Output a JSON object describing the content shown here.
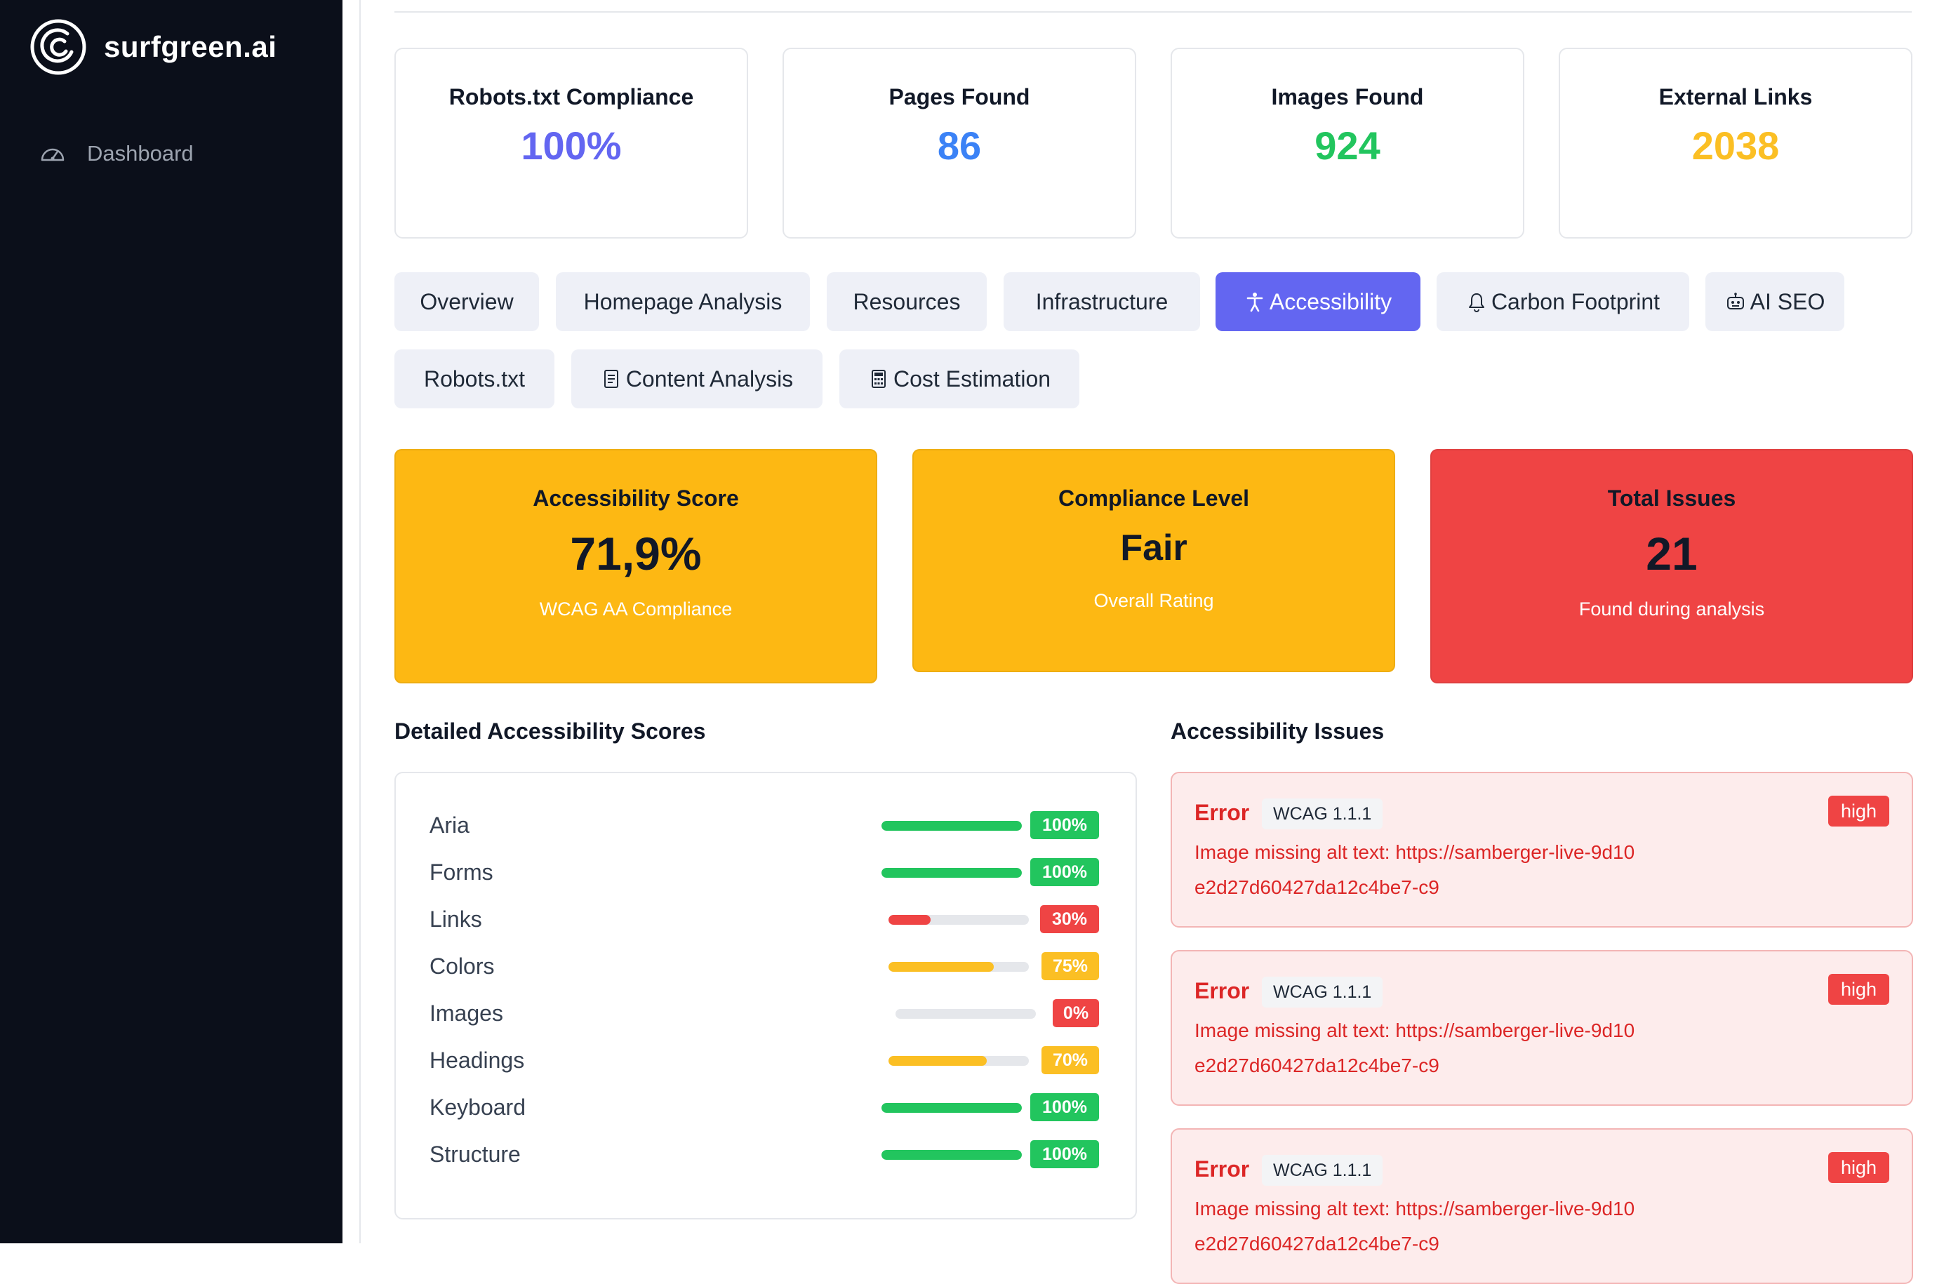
{
  "app": {
    "brand": "surfgreen.ai"
  },
  "sidebar": {
    "items": [
      {
        "label": "Dashboard",
        "icon": "gauge-icon"
      }
    ]
  },
  "stats": [
    {
      "title": "Robots.txt Compliance",
      "value": "100%",
      "color": "#6366f1"
    },
    {
      "title": "Pages Found",
      "value": "86",
      "color": "#3b82f6"
    },
    {
      "title": "Images Found",
      "value": "924",
      "color": "#22c55e"
    },
    {
      "title": "External Links",
      "value": "2038",
      "color": "#fbbf24"
    }
  ],
  "tabs": [
    {
      "label": "Overview"
    },
    {
      "label": "Homepage Analysis"
    },
    {
      "label": "Resources"
    },
    {
      "label": "Infrastructure"
    },
    {
      "label": "Accessibility",
      "icon": "accessibility-icon",
      "active": true
    },
    {
      "label": "Carbon Footprint",
      "icon": "bell-icon"
    },
    {
      "label": "AI SEO",
      "icon": "robot-icon"
    },
    {
      "label": "Robots.txt"
    },
    {
      "label": "Content Analysis",
      "icon": "document-icon"
    },
    {
      "label": "Cost Estimation",
      "icon": "calculator-icon"
    }
  ],
  "summary": [
    {
      "title": "Accessibility Score",
      "value": "71,9%",
      "sub": "WCAG AA Compliance",
      "color": "#fdb813"
    },
    {
      "title": "Compliance Level",
      "value": "Fair",
      "sub": "Overall Rating",
      "color": "#fdb813"
    },
    {
      "title": "Total Issues",
      "value": "21",
      "sub": "Found during analysis",
      "color": "#ef4444"
    }
  ],
  "detailed": {
    "title": "Detailed Accessibility Scores",
    "rows": [
      {
        "name": "Aria",
        "percent": 100,
        "label": "100%",
        "color": "#22c55e"
      },
      {
        "name": "Forms",
        "percent": 100,
        "label": "100%",
        "color": "#22c55e"
      },
      {
        "name": "Links",
        "percent": 30,
        "label": "30%",
        "color": "#ef4444"
      },
      {
        "name": "Colors",
        "percent": 75,
        "label": "75%",
        "color": "#fbbf24"
      },
      {
        "name": "Images",
        "percent": 0,
        "label": "0%",
        "color": "#ef4444"
      },
      {
        "name": "Headings",
        "percent": 70,
        "label": "70%",
        "color": "#fbbf24"
      },
      {
        "name": "Keyboard",
        "percent": 100,
        "label": "100%",
        "color": "#22c55e"
      },
      {
        "name": "Structure",
        "percent": 100,
        "label": "100%",
        "color": "#22c55e"
      }
    ]
  },
  "issues": {
    "title": "Accessibility Issues",
    "items": [
      {
        "type": "Error",
        "wcag": "WCAG 1.1.1",
        "severity": "high",
        "message": "Image missing alt text: https://samberger-live-9d10e2d27d60427da12c4be7-c9"
      },
      {
        "type": "Error",
        "wcag": "WCAG 1.1.1",
        "severity": "high",
        "message": "Image missing alt text: https://samberger-live-9d10e2d27d60427da12c4be7-c9"
      },
      {
        "type": "Error",
        "wcag": "WCAG 1.1.1",
        "severity": "high",
        "message": "Image missing alt text: https://samberger-live-9d10e2d27d60427da12c4be7-c9"
      }
    ]
  }
}
